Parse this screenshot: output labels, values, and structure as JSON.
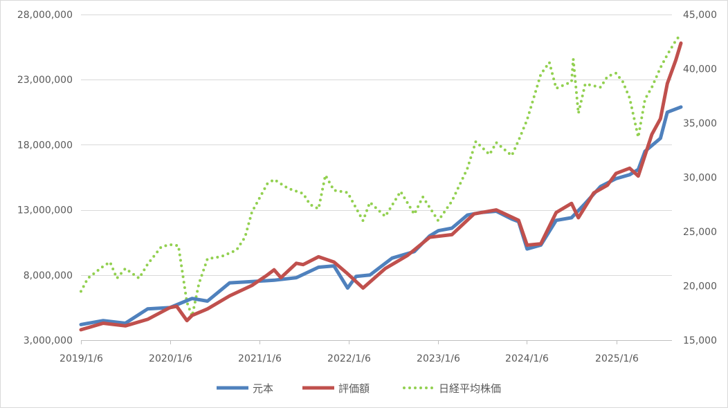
{
  "chart_data": {
    "type": "line",
    "x_tick_labels": [
      "2019/1/6",
      "2020/1/6",
      "2021/1/6",
      "2022/1/6",
      "2023/1/6",
      "2024/1/6",
      "2025/1/6"
    ],
    "x_range": [
      "2019/1/6",
      "2025/9/28"
    ],
    "y_left": {
      "tick_labels": [
        "3,000,000",
        "8,000,000",
        "13,000,000",
        "18,000,000",
        "23,000,000",
        "28,000,000"
      ],
      "ylim": [
        3000000,
        28000000
      ]
    },
    "y_right": {
      "tick_labels": [
        "15,000",
        "20,000",
        "25,000",
        "30,000",
        "35,000",
        "40,000",
        "45,000"
      ],
      "ylim": [
        15000,
        45000
      ]
    },
    "grid": "horizontal",
    "legend_position": "bottom",
    "series": [
      {
        "name": "元本",
        "axis": "left",
        "color": "#4f81bd",
        "style": "solid",
        "points": [
          [
            "2019/1/6",
            4200000
          ],
          [
            "2019/4/7",
            4500000
          ],
          [
            "2019/7/7",
            4300000
          ],
          [
            "2019/10/6",
            5400000
          ],
          [
            "2020/1/5",
            5500000
          ],
          [
            "2020/4/5",
            6200000
          ],
          [
            "2020/6/7",
            6000000
          ],
          [
            "2020/9/6",
            7400000
          ],
          [
            "2020/12/6",
            7500000
          ],
          [
            "2021/3/7",
            7600000
          ],
          [
            "2021/6/6",
            7800000
          ],
          [
            "2021/9/5",
            8600000
          ],
          [
            "2021/11/7",
            8700000
          ],
          [
            "2022/1/2",
            7000000
          ],
          [
            "2022/2/6",
            7900000
          ],
          [
            "2022/4/3",
            8000000
          ],
          [
            "2022/7/3",
            9300000
          ],
          [
            "2022/10/2",
            9800000
          ],
          [
            "2022/12/4",
            11000000
          ],
          [
            "2023/1/8",
            11400000
          ],
          [
            "2023/3/5",
            11600000
          ],
          [
            "2023/5/7",
            12600000
          ],
          [
            "2023/7/2",
            12800000
          ],
          [
            "2023/9/3",
            12900000
          ],
          [
            "2023/11/5",
            12300000
          ],
          [
            "2023/12/3",
            12100000
          ],
          [
            "2024/1/7",
            10000000
          ],
          [
            "2024/3/3",
            10300000
          ],
          [
            "2024/5/5",
            12200000
          ],
          [
            "2024/7/7",
            12400000
          ],
          [
            "2024/9/1",
            13500000
          ],
          [
            "2024/11/3",
            14800000
          ],
          [
            "2025/1/5",
            15400000
          ],
          [
            "2025/3/2",
            15700000
          ],
          [
            "2025/4/6",
            16100000
          ],
          [
            "2025/5/4",
            17500000
          ],
          [
            "2025/7/6",
            18500000
          ],
          [
            "2025/8/3",
            20500000
          ],
          [
            "2025/9/28",
            20900000
          ]
        ]
      },
      {
        "name": "評価額",
        "axis": "left",
        "color": "#c0504d",
        "style": "solid",
        "points": [
          [
            "2019/1/6",
            3800000
          ],
          [
            "2019/4/7",
            4300000
          ],
          [
            "2019/7/7",
            4100000
          ],
          [
            "2019/10/6",
            4600000
          ],
          [
            "2020/1/5",
            5500000
          ],
          [
            "2020/2/2",
            5600000
          ],
          [
            "2020/3/15",
            4500000
          ],
          [
            "2020/4/5",
            4900000
          ],
          [
            "2020/6/7",
            5400000
          ],
          [
            "2020/9/6",
            6400000
          ],
          [
            "2020/12/6",
            7200000
          ],
          [
            "2021/2/7",
            8000000
          ],
          [
            "2021/3/7",
            8400000
          ],
          [
            "2021/4/4",
            7800000
          ],
          [
            "2021/6/6",
            8900000
          ],
          [
            "2021/7/4",
            8800000
          ],
          [
            "2021/9/5",
            9400000
          ],
          [
            "2021/11/7",
            9000000
          ],
          [
            "2022/1/2",
            8100000
          ],
          [
            "2022/3/6",
            7000000
          ],
          [
            "2022/6/5",
            8500000
          ],
          [
            "2022/9/4",
            9500000
          ],
          [
            "2022/12/4",
            10900000
          ],
          [
            "2023/3/5",
            11100000
          ],
          [
            "2023/6/4",
            12700000
          ],
          [
            "2023/9/3",
            13000000
          ],
          [
            "2023/12/3",
            12200000
          ],
          [
            "2024/1/7",
            10300000
          ],
          [
            "2024/3/3",
            10400000
          ],
          [
            "2024/5/5",
            12800000
          ],
          [
            "2024/7/7",
            13500000
          ],
          [
            "2024/8/4",
            12400000
          ],
          [
            "2024/10/6",
            14300000
          ],
          [
            "2024/12/1",
            14900000
          ],
          [
            "2025/1/5",
            15800000
          ],
          [
            "2025/3/2",
            16200000
          ],
          [
            "2025/4/6",
            15600000
          ],
          [
            "2025/6/1",
            18800000
          ],
          [
            "2025/7/6",
            20000000
          ],
          [
            "2025/8/3",
            22700000
          ],
          [
            "2025/9/7",
            24500000
          ],
          [
            "2025/9/28",
            25800000
          ]
        ]
      },
      {
        "name": "日経平均株価",
        "axis": "right",
        "color": "#92d050",
        "style": "dotted",
        "points": [
          [
            "2019/1/6",
            19500
          ],
          [
            "2019/2/3",
            20700
          ],
          [
            "2019/4/7",
            21800
          ],
          [
            "2019/5/5",
            22200
          ],
          [
            "2019/6/2",
            20700
          ],
          [
            "2019/7/7",
            21600
          ],
          [
            "2019/9/1",
            20700
          ],
          [
            "2019/10/6",
            22000
          ],
          [
            "2019/12/1",
            23600
          ],
          [
            "2020/1/5",
            23800
          ],
          [
            "2020/2/9",
            23700
          ],
          [
            "2020/3/15",
            18500
          ],
          [
            "2020/4/5",
            17200
          ],
          [
            "2020/5/3",
            20200
          ],
          [
            "2020/6/7",
            22500
          ],
          [
            "2020/8/2",
            22700
          ],
          [
            "2020/10/4",
            23300
          ],
          [
            "2020/11/8",
            24500
          ],
          [
            "2020/12/6",
            26800
          ],
          [
            "2021/2/7",
            29400
          ],
          [
            "2021/3/7",
            29800
          ],
          [
            "2021/5/2",
            29000
          ],
          [
            "2021/7/4",
            28500
          ],
          [
            "2021/8/1",
            27500
          ],
          [
            "2021/9/5",
            27100
          ],
          [
            "2021/10/3",
            30200
          ],
          [
            "2021/11/7",
            28800
          ],
          [
            "2022/1/2",
            28600
          ],
          [
            "2022/3/6",
            26000
          ],
          [
            "2022/4/3",
            27700
          ],
          [
            "2022/6/5",
            26400
          ],
          [
            "2022/8/7",
            28700
          ],
          [
            "2022/10/2",
            26600
          ],
          [
            "2022/11/6",
            28200
          ],
          [
            "2023/1/8",
            26000
          ],
          [
            "2023/3/5",
            27800
          ],
          [
            "2023/5/7",
            30800
          ],
          [
            "2023/6/11",
            33300
          ],
          [
            "2023/8/6",
            32100
          ],
          [
            "2023/9/3",
            33200
          ],
          [
            "2023/11/5",
            32000
          ],
          [
            "2023/12/3",
            33400
          ],
          [
            "2024/1/7",
            35300
          ],
          [
            "2024/3/3",
            39500
          ],
          [
            "2024/4/7",
            40600
          ],
          [
            "2024/5/5",
            38200
          ],
          [
            "2024/7/7",
            38800
          ],
          [
            "2024/7/14",
            40900
          ],
          [
            "2024/8/4",
            35900
          ],
          [
            "2024/9/1",
            38600
          ],
          [
            "2024/11/3",
            38300
          ],
          [
            "2024/12/1",
            39300
          ],
          [
            "2025/1/5",
            39600
          ],
          [
            "2025/2/2",
            38800
          ],
          [
            "2025/3/2",
            37300
          ],
          [
            "2025/4/6",
            33700
          ],
          [
            "2025/5/4",
            37200
          ],
          [
            "2025/6/1",
            38300
          ],
          [
            "2025/7/6",
            40100
          ],
          [
            "2025/8/3",
            41300
          ],
          [
            "2025/9/7",
            42600
          ],
          [
            "2025/9/28",
            43200
          ]
        ]
      }
    ]
  }
}
